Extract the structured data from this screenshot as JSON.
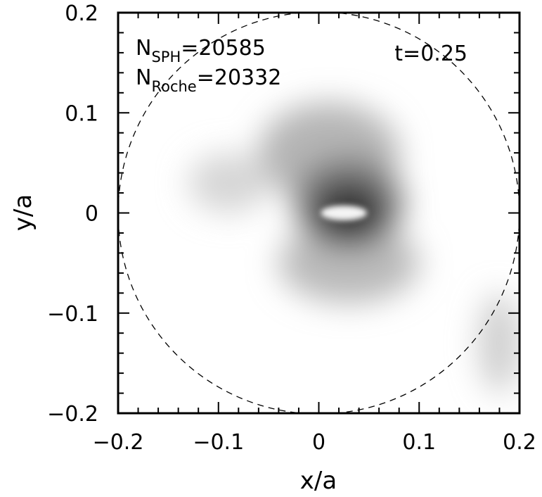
{
  "chart_data": {
    "type": "heatmap",
    "title": "",
    "xlabel": "x/a",
    "ylabel": "y/a",
    "xlim": [
      -0.2,
      0.2
    ],
    "ylim": [
      -0.2,
      0.2
    ],
    "xticks": [
      "−0.2",
      "−0.1",
      "0",
      "0.1",
      "0.2"
    ],
    "xtick_values": [
      -0.2,
      -0.1,
      0,
      0.1,
      0.2
    ],
    "yticks": [
      "−0.2",
      "−0.1",
      "0",
      "0.1",
      "0.2"
    ],
    "ytick_values": [
      -0.2,
      -0.1,
      0,
      0.1,
      0.2
    ],
    "grid": false,
    "annotations": {
      "nsph_main": "N",
      "nsph_sub": "SPH",
      "nsph_value": "=20585",
      "nroche_main": "N",
      "nroche_sub": "Roche",
      "nroche_value": "=20332",
      "time": "t=0.25"
    },
    "roche_circle": {
      "center": [
        0,
        0
      ],
      "radius": 0.2,
      "style": "dashed"
    },
    "density_blobs": [
      {
        "x": 0.01,
        "y": 0.06,
        "sx": 0.07,
        "sy": 0.05,
        "darkness": 0.32
      },
      {
        "x": -0.09,
        "y": 0.03,
        "sx": 0.04,
        "sy": 0.03,
        "darkness": 0.18
      },
      {
        "x": 0.03,
        "y": -0.05,
        "sx": 0.07,
        "sy": 0.04,
        "darkness": 0.3
      },
      {
        "x": 0.03,
        "y": 0.01,
        "sx": 0.055,
        "sy": 0.045,
        "darkness": 0.55
      },
      {
        "x": 0.03,
        "y": 0.0,
        "sx": 0.035,
        "sy": 0.03,
        "darkness": 0.85
      },
      {
        "x": 0.18,
        "y": -0.13,
        "sx": 0.02,
        "sy": 0.05,
        "darkness": 0.22
      }
    ],
    "core": {
      "x": 0.025,
      "y": 0.0,
      "rx": 0.023,
      "ry": 0.0075
    }
  }
}
